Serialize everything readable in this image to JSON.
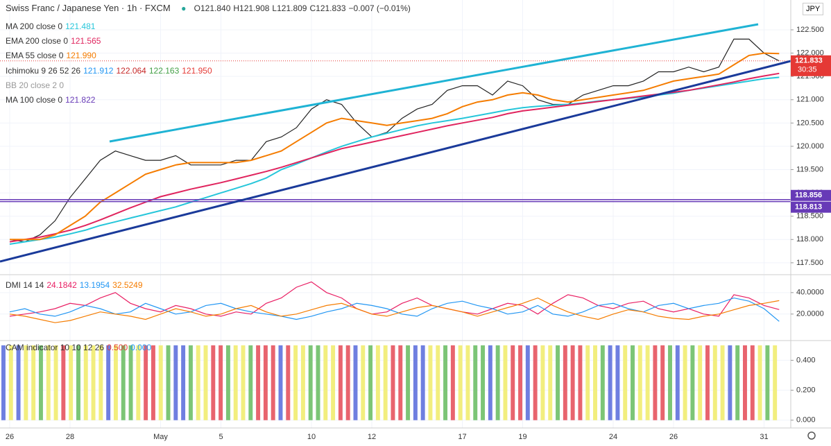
{
  "header": {
    "title": "Swiss Franc / Japanese Yen · 1h · FXCM",
    "ohlc": [
      "O121.840",
      "H121.908",
      "L121.809",
      "C121.833"
    ],
    "change": "−0.007 (−0.01%)",
    "currency": "JPY",
    "ichimoku": {
      "name": "Ichimoku 9 26 52 26",
      "values": [
        "121.912",
        "122.064",
        "122.163",
        "121.950"
      ]
    },
    "bb": "BB 20 close 2 0",
    "ma100": {
      "name": "MA 100 close 0",
      "value": "121.822"
    },
    "dmi": "DMI 14 14",
    "cam": {
      "name": "CAM indicator 10 10 12 26",
      "values": [
        "0.500",
        "0.000"
      ]
    }
  },
  "chart_data": [
    {
      "type": "line",
      "categories": [
        "26",
        null,
        null,
        null,
        "28",
        null,
        null,
        null,
        null,
        null,
        "May",
        null,
        null,
        null,
        "5",
        null,
        null,
        null,
        null,
        null,
        "10",
        null,
        null,
        null,
        "12",
        null,
        null,
        null,
        null,
        null,
        "17",
        null,
        null,
        null,
        "19",
        null,
        null,
        null,
        null,
        null,
        "24",
        null,
        null,
        null,
        "26",
        null,
        null,
        null,
        null,
        null,
        "31",
        null
      ],
      "ylim": [
        117.26,
        123.14
      ],
      "yticks": [
        {
          "value": 117.5,
          "label": "117.500"
        },
        {
          "value": 118,
          "label": "118.000"
        },
        {
          "value": 118.5,
          "label": "118.500"
        },
        {
          "value": 119,
          "label": "119.000"
        },
        {
          "value": 119.5,
          "label": "119.500"
        },
        {
          "value": 120,
          "label": "120.000"
        },
        {
          "value": 120.5,
          "label": "120.500"
        },
        {
          "value": 121,
          "label": "121.000"
        },
        {
          "value": 121.5,
          "label": "121.500"
        },
        {
          "value": 122,
          "label": "122.000"
        },
        {
          "value": 122.5,
          "label": "122.500"
        }
      ],
      "grid": true,
      "series": [
        {
          "name": "Close",
          "color": "#222222",
          "values": [
            118.0,
            117.95,
            118.1,
            118.4,
            118.9,
            119.3,
            119.7,
            119.9,
            119.8,
            119.7,
            119.7,
            119.8,
            119.6,
            119.6,
            119.6,
            119.7,
            119.7,
            120.1,
            120.2,
            120.4,
            120.8,
            121.0,
            120.9,
            120.5,
            120.2,
            120.3,
            120.6,
            120.8,
            120.9,
            121.2,
            121.3,
            121.3,
            121.1,
            121.4,
            121.3,
            121.0,
            120.9,
            120.9,
            121.1,
            121.2,
            121.3,
            121.3,
            121.4,
            121.6,
            121.6,
            121.7,
            121.6,
            121.7,
            122.3,
            122.3,
            122.0,
            121.833
          ]
        },
        {
          "name": "MA 200 close 0",
          "legend_value": "121.481",
          "color": "#26c6da",
          "values": [
            117.9,
            117.95,
            118.0,
            118.05,
            118.12,
            118.2,
            118.3,
            118.38,
            118.46,
            118.54,
            118.62,
            118.7,
            118.8,
            118.9,
            119.0,
            119.1,
            119.2,
            119.32,
            119.5,
            119.62,
            119.75,
            119.88,
            120.0,
            120.1,
            120.2,
            120.28,
            120.36,
            120.44,
            120.5,
            120.55,
            120.6,
            120.66,
            120.72,
            120.78,
            120.83,
            120.86,
            120.88,
            120.9,
            120.93,
            120.97,
            121.0,
            121.03,
            121.06,
            121.1,
            121.14,
            121.2,
            121.25,
            121.3,
            121.35,
            121.4,
            121.45,
            121.48
          ]
        },
        {
          "name": "EMA 200 close 0",
          "legend_value": "121.565",
          "color": "#e0245e",
          "values": [
            117.95,
            118.0,
            118.05,
            118.12,
            118.2,
            118.3,
            118.42,
            118.55,
            118.68,
            118.8,
            118.92,
            119.0,
            119.08,
            119.15,
            119.22,
            119.3,
            119.38,
            119.46,
            119.55,
            119.65,
            119.75,
            119.85,
            119.95,
            120.02,
            120.09,
            120.16,
            120.23,
            120.3,
            120.37,
            120.44,
            120.5,
            120.56,
            120.62,
            120.7,
            120.76,
            120.8,
            120.84,
            120.88,
            120.92,
            120.96,
            121.0,
            121.04,
            121.08,
            121.12,
            121.16,
            121.2,
            121.26,
            121.32,
            121.38,
            121.45,
            121.51,
            121.565
          ]
        },
        {
          "name": "EMA 55 close 0",
          "legend_value": "121.990",
          "color": "#f57c00",
          "values": [
            118.0,
            118.0,
            118.0,
            118.1,
            118.3,
            118.5,
            118.8,
            119.0,
            119.2,
            119.4,
            119.5,
            119.6,
            119.65,
            119.65,
            119.65,
            119.65,
            119.7,
            119.8,
            119.9,
            120.1,
            120.3,
            120.5,
            120.6,
            120.55,
            120.5,
            120.45,
            120.5,
            120.55,
            120.6,
            120.7,
            120.85,
            120.95,
            121.0,
            121.1,
            121.15,
            121.1,
            121.0,
            120.95,
            121.0,
            121.05,
            121.1,
            121.15,
            121.2,
            121.3,
            121.4,
            121.45,
            121.5,
            121.55,
            121.75,
            121.95,
            122.0,
            121.99
          ]
        }
      ],
      "hlines": [
        {
          "value": 118.856,
          "label": "118.856",
          "color": "#673ab7"
        },
        {
          "value": 118.813,
          "label": "118.813",
          "color": "#673ab7"
        }
      ],
      "last_price": {
        "value": 121.833,
        "label": "121.833",
        "countdown": "30:35",
        "color": "#e53935"
      }
    },
    {
      "type": "line",
      "ylim": [
        -4.7,
        56.7
      ],
      "yticks": [
        {
          "value": 40,
          "label": "40.0000"
        },
        {
          "value": 20,
          "label": "20.0000"
        }
      ],
      "grid": true,
      "series": [
        {
          "color": "#e91e63",
          "values": [
            18,
            20,
            22,
            25,
            30,
            28,
            35,
            40,
            30,
            25,
            22,
            28,
            25,
            20,
            18,
            22,
            20,
            30,
            35,
            45,
            50,
            40,
            35,
            25,
            20,
            22,
            30,
            35,
            28,
            25,
            22,
            20,
            25,
            30,
            28,
            20,
            30,
            38,
            35,
            28,
            25,
            30,
            32,
            25,
            22,
            25,
            20,
            18,
            38,
            35,
            28,
            24.1842
          ]
        },
        {
          "color": "#2196f3",
          "values": [
            22,
            25,
            20,
            18,
            22,
            28,
            25,
            20,
            22,
            30,
            25,
            20,
            22,
            28,
            30,
            25,
            22,
            20,
            18,
            15,
            18,
            22,
            25,
            30,
            28,
            25,
            20,
            18,
            25,
            30,
            32,
            28,
            25,
            20,
            22,
            28,
            20,
            18,
            22,
            28,
            30,
            25,
            22,
            28,
            30,
            25,
            28,
            30,
            35,
            32,
            25,
            13.1954
          ]
        },
        {
          "color": "#f57c00",
          "values": [
            20,
            18,
            15,
            12,
            14,
            18,
            22,
            20,
            18,
            15,
            20,
            25,
            22,
            18,
            20,
            25,
            28,
            22,
            18,
            20,
            24,
            28,
            30,
            25,
            20,
            18,
            22,
            26,
            28,
            25,
            22,
            18,
            22,
            26,
            30,
            35,
            28,
            22,
            18,
            15,
            20,
            24,
            22,
            18,
            16,
            15,
            18,
            20,
            24,
            28,
            30,
            32.5249
          ]
        }
      ]
    },
    {
      "type": "bar",
      "ylim": [
        -0.052,
        0.527
      ],
      "yticks": [
        {
          "value": 0.4,
          "label": "0.400"
        },
        {
          "value": 0.2,
          "label": "0.200"
        },
        {
          "value": 0,
          "label": "0.000"
        }
      ],
      "grid": true,
      "values": [
        0.5,
        0.5,
        0.5,
        0.5,
        0.5,
        0.5,
        0.5,
        0.5,
        0.5,
        0.5,
        0.5,
        0.5,
        0.5,
        0.5,
        0.5,
        0.5,
        0.5,
        0.5,
        0.5,
        0.5,
        0.5,
        0.5,
        0.5,
        0.5,
        0.5,
        0.5,
        0.5,
        0.5,
        0.5,
        0.5,
        0.5,
        0.5,
        0.5,
        0.5,
        0.5,
        0.5,
        0.5,
        0.5,
        0.5,
        0.5,
        0.5,
        0.5,
        0.5,
        0.5,
        0.5,
        0.5,
        0.5,
        0.5,
        0.5,
        0.5,
        0.5,
        0.5,
        0.5,
        0.5,
        0.5,
        0.5,
        0.5,
        0.5,
        0.5,
        0.5,
        0.5,
        0.5,
        0.5,
        0.5,
        0.5,
        0.5,
        0.5,
        0.5,
        0.5,
        0.5,
        0.5,
        0.5,
        0.5,
        0.5,
        0.5,
        0.5,
        0.5,
        0.5,
        0.5,
        0.5,
        0.5,
        0.5,
        0.5,
        0.5,
        0.5,
        0.5,
        0.5,
        0.5,
        0.5,
        0.5,
        0.5,
        0.5,
        0.5,
        0.5,
        0.5,
        0.5,
        0.5,
        0.5,
        0.5,
        0.5,
        0.5,
        0.5,
        0.5,
        0.5
      ],
      "bar_colors": [
        "#6f7fe0",
        "#f2ee7e",
        "#6f7fe0",
        "#f2ee7e",
        "#f2ee7e",
        "#7cc576",
        "#f2ee7e",
        "#f2ee7e",
        "#e8646e",
        "#f2ee7e",
        "#7cc576",
        "#f2ee7e",
        "#f2ee7e",
        "#f2ee7e",
        "#6f7fe0",
        "#f2ee7e",
        "#7cc576",
        "#7cc576",
        "#f2ee7e",
        "#e8646e",
        "#e8646e",
        "#f2ee7e",
        "#7cc576",
        "#6f7fe0",
        "#6f7fe0",
        "#7cc576",
        "#f2ee7e",
        "#f2ee7e",
        "#e8646e",
        "#e8646e",
        "#7cc576",
        "#f2ee7e",
        "#f2ee7e",
        "#7cc576",
        "#e8646e",
        "#e8646e",
        "#e8646e",
        "#6f7fe0",
        "#e8646e",
        "#f2ee7e",
        "#f2ee7e",
        "#7cc576",
        "#7cc576",
        "#f2ee7e",
        "#f2ee7e",
        "#e8646e",
        "#e8646e",
        "#6f7fe0",
        "#f2ee7e",
        "#7cc576",
        "#f2ee7e",
        "#f2ee7e",
        "#e8646e",
        "#e8646e",
        "#7cc576",
        "#6f7fe0",
        "#6f7fe0",
        "#f2ee7e",
        "#f2ee7e",
        "#7cc576",
        "#e8646e",
        "#f2ee7e",
        "#f2ee7e",
        "#7cc576",
        "#7cc576",
        "#6f7fe0",
        "#7cc576",
        "#f2ee7e",
        "#e8646e",
        "#e8646e",
        "#6f7fe0",
        "#e8646e",
        "#f2ee7e",
        "#f2ee7e",
        "#7cc576",
        "#e8646e",
        "#e8646e",
        "#e8646e",
        "#f2ee7e",
        "#f2ee7e",
        "#7cc576",
        "#6f7fe0",
        "#6f7fe0",
        "#f2ee7e",
        "#7cc576",
        "#f2ee7e",
        "#f2ee7e",
        "#e8646e",
        "#e8646e",
        "#7cc576",
        "#6f7fe0",
        "#f2ee7e",
        "#7cc576",
        "#f2ee7e",
        "#e8646e",
        "#f2ee7e",
        "#f2ee7e",
        "#6f7fe0",
        "#7cc576",
        "#e8646e",
        "#e8646e",
        "#f2ee7e",
        "#7cc576",
        "#f2ee7e"
      ]
    }
  ]
}
